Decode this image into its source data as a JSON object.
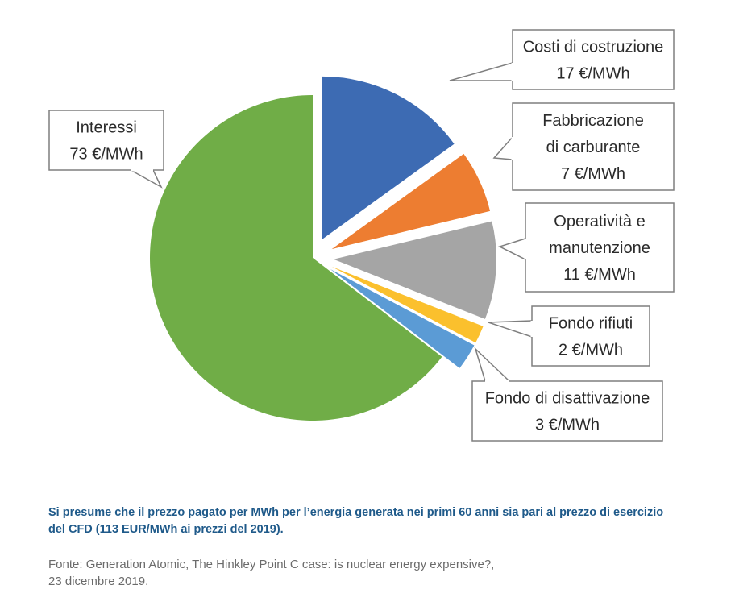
{
  "chart_data": {
    "type": "pie",
    "unit": "€/MWh",
    "slices": [
      {
        "label_lines": [
          "Costi di costruzione"
        ],
        "value": 17,
        "value_label": "17 €/MWh",
        "color": "#3d6bb3"
      },
      {
        "label_lines": [
          "Fabbricazione",
          "di carburante"
        ],
        "value": 7,
        "value_label": "7 €/MWh",
        "color": "#ed7d31"
      },
      {
        "label_lines": [
          "Operatività e",
          "manutenzione"
        ],
        "value": 11,
        "value_label": "11 €/MWh",
        "color": "#a5a5a5"
      },
      {
        "label_lines": [
          "Fondo rifiuti"
        ],
        "value": 2,
        "value_label": "2 €/MWh",
        "color": "#fbc02d"
      },
      {
        "label_lines": [
          "Fondo di disattivazione"
        ],
        "value": 3,
        "value_label": "3 €/MWh",
        "color": "#5b9bd5"
      },
      {
        "label_lines": [
          "Interessi"
        ],
        "value": 73,
        "value_label": "73 €/MWh",
        "color": "#70ad47"
      }
    ],
    "legend": "callouts"
  },
  "footnote": {
    "lines": [
      "Si presume che il prezzo pagato per MWh per l’energia generata nei primi 60 anni sia pari al prezzo di esercizio",
      "del CFD (113 EUR/MWh ai prezzi del 2019)."
    ]
  },
  "source": {
    "lines": [
      "Fonte: Generation Atomic, The Hinkley Point C case: is nuclear energy expensive?,",
      "23 dicembre 2019."
    ]
  }
}
